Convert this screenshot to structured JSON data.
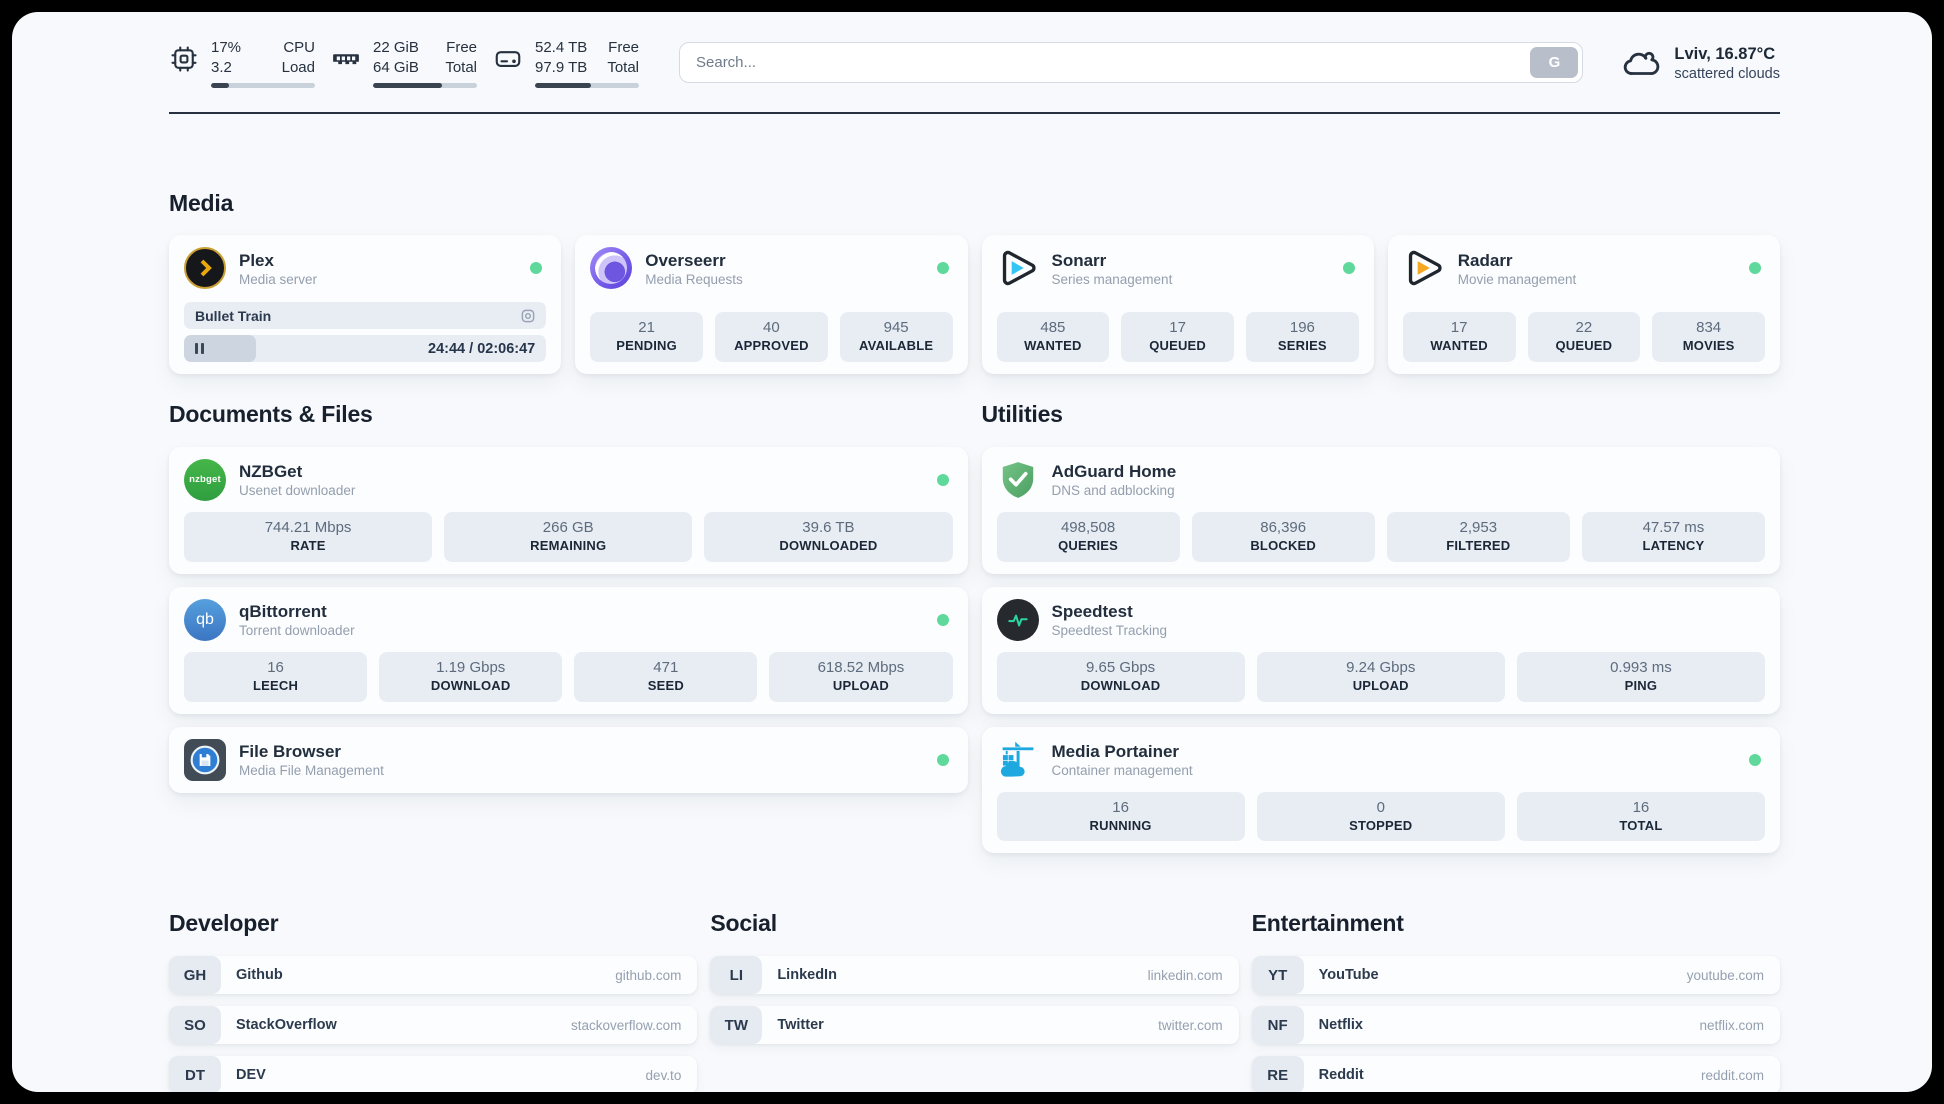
{
  "colors": {
    "status_online": "#5fd99b",
    "accent_dark": "#27313f",
    "plex_gold": "#e9a90c",
    "sonarr_cyan": "#35c5f4",
    "radarr_orange": "#f7a823",
    "adguard_green": "#5fae72",
    "speedtest_pulse": "#2bd4a0",
    "portainer_blue": "#1da9e0"
  },
  "topbar": {
    "cpu": {
      "icon": "cpu-chip-icon",
      "values": [
        "17%",
        "3.2"
      ],
      "labels": [
        "CPU",
        "Load"
      ],
      "progress_pct": 17
    },
    "memory": {
      "icon": "ram-icon",
      "values": [
        "22 GiB",
        "64 GiB"
      ],
      "labels": [
        "Free",
        "Total"
      ],
      "progress_pct": 66
    },
    "disk": {
      "icon": "hard-drive-icon",
      "values": [
        "52.4 TB",
        "97.9 TB"
      ],
      "labels": [
        "Free",
        "Total"
      ],
      "progress_pct": 54
    },
    "search": {
      "placeholder": "Search...",
      "button_label": "G"
    },
    "weather": {
      "icon": "cloud-icon",
      "headline": "Lviv, 16.87°C",
      "condition": "scattered clouds"
    }
  },
  "media": {
    "title": "Media",
    "plex": {
      "name": "Plex",
      "subtitle": "Media server",
      "online": true,
      "now_playing": {
        "title": "Bullet Train",
        "time": "24:44 / 02:06:47",
        "progress_pct": 20
      }
    },
    "overseerr": {
      "name": "Overseerr",
      "subtitle": "Media Requests",
      "online": true,
      "stats": [
        {
          "value": "21",
          "label": "PENDING"
        },
        {
          "value": "40",
          "label": "APPROVED"
        },
        {
          "value": "945",
          "label": "AVAILABLE"
        }
      ]
    },
    "sonarr": {
      "name": "Sonarr",
      "subtitle": "Series management",
      "online": true,
      "stats": [
        {
          "value": "485",
          "label": "WANTED"
        },
        {
          "value": "17",
          "label": "QUEUED"
        },
        {
          "value": "196",
          "label": "SERIES"
        }
      ]
    },
    "radarr": {
      "name": "Radarr",
      "subtitle": "Movie management",
      "online": true,
      "stats": [
        {
          "value": "17",
          "label": "WANTED"
        },
        {
          "value": "22",
          "label": "QUEUED"
        },
        {
          "value": "834",
          "label": "MOVIES"
        }
      ]
    }
  },
  "documents": {
    "title": "Documents & Files",
    "nzbget": {
      "name": "NZBGet",
      "subtitle": "Usenet downloader",
      "online": true,
      "icon_text": "nzbget",
      "stats": [
        {
          "value": "744.21 Mbps",
          "label": "RATE"
        },
        {
          "value": "266 GB",
          "label": "REMAINING"
        },
        {
          "value": "39.6 TB",
          "label": "DOWNLOADED"
        }
      ]
    },
    "qbittorrent": {
      "name": "qBittorrent",
      "subtitle": "Torrent downloader",
      "online": true,
      "icon_text": "qb",
      "stats": [
        {
          "value": "16",
          "label": "LEECH"
        },
        {
          "value": "1.19 Gbps",
          "label": "DOWNLOAD"
        },
        {
          "value": "471",
          "label": "SEED"
        },
        {
          "value": "618.52 Mbps",
          "label": "UPLOAD"
        }
      ]
    },
    "filebrowser": {
      "name": "File Browser",
      "subtitle": "Media File Management",
      "online": true
    }
  },
  "utilities": {
    "title": "Utilities",
    "adguard": {
      "name": "AdGuard Home",
      "subtitle": "DNS and adblocking",
      "stats": [
        {
          "value": "498,508",
          "label": "QUERIES"
        },
        {
          "value": "86,396",
          "label": "BLOCKED"
        },
        {
          "value": "2,953",
          "label": "FILTERED"
        },
        {
          "value": "47.57 ms",
          "label": "LATENCY"
        }
      ]
    },
    "speedtest": {
      "name": "Speedtest",
      "subtitle": "Speedtest Tracking",
      "stats": [
        {
          "value": "9.65 Gbps",
          "label": "DOWNLOAD"
        },
        {
          "value": "9.24 Gbps",
          "label": "UPLOAD"
        },
        {
          "value": "0.993 ms",
          "label": "PING"
        }
      ]
    },
    "portainer": {
      "name": "Media Portainer",
      "subtitle": "Container management",
      "online": true,
      "stats": [
        {
          "value": "16",
          "label": "RUNNING"
        },
        {
          "value": "0",
          "label": "STOPPED"
        },
        {
          "value": "16",
          "label": "TOTAL"
        }
      ]
    }
  },
  "bookmarks": {
    "developer": {
      "title": "Developer",
      "items": [
        {
          "abbr": "GH",
          "name": "Github",
          "url": "github.com"
        },
        {
          "abbr": "SO",
          "name": "StackOverflow",
          "url": "stackoverflow.com"
        },
        {
          "abbr": "DT",
          "name": "DEV",
          "url": "dev.to"
        }
      ]
    },
    "social": {
      "title": "Social",
      "items": [
        {
          "abbr": "LI",
          "name": "LinkedIn",
          "url": "linkedin.com"
        },
        {
          "abbr": "TW",
          "name": "Twitter",
          "url": "twitter.com"
        }
      ]
    },
    "entertainment": {
      "title": "Entertainment",
      "items": [
        {
          "abbr": "YT",
          "name": "YouTube",
          "url": "youtube.com"
        },
        {
          "abbr": "NF",
          "name": "Netflix",
          "url": "netflix.com"
        },
        {
          "abbr": "RE",
          "name": "Reddit",
          "url": "reddit.com"
        }
      ]
    }
  }
}
